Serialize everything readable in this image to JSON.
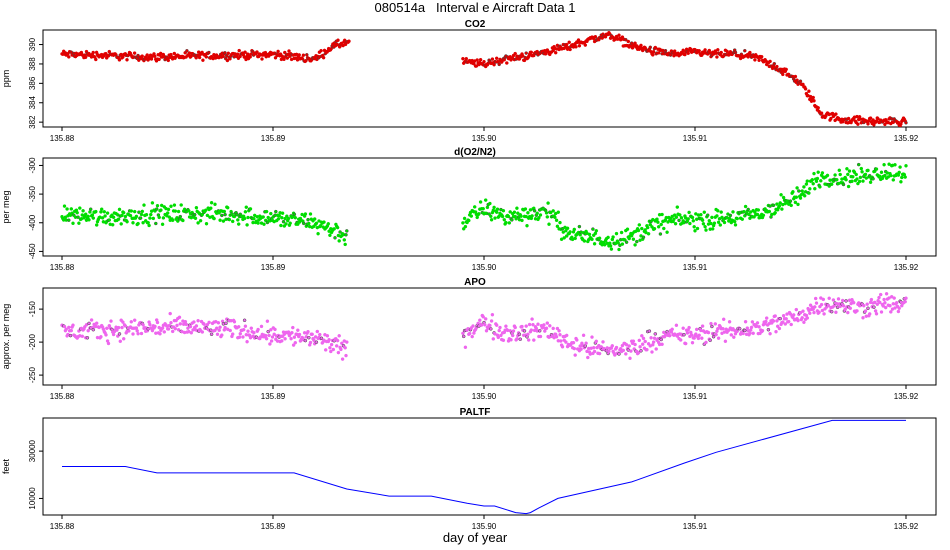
{
  "title": "080514a   Interval e Aircraft Data 1",
  "xlabel": "day of year",
  "chart_data": [
    {
      "type": "scatter",
      "title": "CO2",
      "ylabel": "ppm",
      "color": "#e00000",
      "xlim": [
        135.88,
        135.92
      ],
      "ylim": [
        381.5,
        391.5
      ],
      "xticks": [
        "135.88",
        "135.89",
        "135.90",
        "135.91",
        "135.92"
      ],
      "yticks": [
        382,
        384,
        386,
        388,
        390
      ],
      "segments": [
        {
          "x": [
            135.88,
            135.882,
            135.884,
            135.886,
            135.888,
            135.89,
            135.892,
            135.8928,
            135.8936
          ],
          "y": [
            389.0,
            388.9,
            388.7,
            388.8,
            388.9,
            389.0,
            388.5,
            389.8,
            390.3
          ]
        },
        {
          "x": [
            135.899,
            135.9,
            135.901,
            135.902,
            135.903,
            135.904,
            135.905,
            135.906,
            135.907,
            135.908,
            135.909,
            135.91,
            135.911,
            135.912,
            135.913,
            135.914,
            135.915,
            135.9155,
            135.916,
            135.917,
            135.918,
            135.919,
            135.92
          ],
          "y": [
            388.2,
            388.0,
            388.5,
            388.8,
            389.3,
            389.8,
            390.5,
            391.0,
            389.9,
            389.3,
            389.0,
            389.2,
            389.0,
            389.0,
            388.6,
            387.5,
            386.0,
            384.5,
            382.8,
            382.3,
            382.1,
            382.1,
            382.0
          ]
        }
      ],
      "noise": 0.35
    },
    {
      "type": "scatter",
      "title": "d(O2/N2)",
      "ylabel": "per meg",
      "color": "#00dd00",
      "xlim": [
        135.88,
        135.92
      ],
      "ylim": [
        -458,
        -287
      ],
      "xticks": [
        "135.88",
        "135.89",
        "135.90",
        "135.91",
        "135.92"
      ],
      "yticks": [
        -300,
        -350,
        -400,
        -450
      ],
      "segments": [
        {
          "x": [
            135.88,
            135.882,
            135.884,
            135.886,
            135.888,
            135.89,
            135.892,
            135.893,
            135.8935
          ],
          "y": [
            -385,
            -390,
            -385,
            -385,
            -385,
            -392,
            -400,
            -415,
            -425
          ]
        },
        {
          "x": [
            135.899,
            135.9,
            135.901,
            135.902,
            135.903,
            135.904,
            135.905,
            135.906,
            135.907,
            135.908,
            135.909,
            135.91,
            135.911,
            135.912,
            135.913,
            135.914,
            135.915,
            135.9155,
            135.916,
            135.917,
            135.918,
            135.919,
            135.92
          ],
          "y": [
            -400,
            -375,
            -390,
            -385,
            -380,
            -420,
            -425,
            -430,
            -425,
            -405,
            -395,
            -395,
            -395,
            -390,
            -385,
            -370,
            -355,
            -330,
            -320,
            -322,
            -318,
            -310,
            -312
          ]
        }
      ],
      "noise": 14
    },
    {
      "type": "scatter",
      "title": "APO",
      "ylabel": "approx. per meg",
      "color": "#ee66ee",
      "xlim": [
        135.88,
        135.92
      ],
      "ylim": [
        -265,
        -118
      ],
      "xticks": [
        "135.88",
        "135.89",
        "135.90",
        "135.91",
        "135.92"
      ],
      "yticks": [
        -150,
        -200,
        -250
      ],
      "segments": [
        {
          "x": [
            135.88,
            135.882,
            135.884,
            135.886,
            135.888,
            135.89,
            135.892,
            135.893,
            135.8935
          ],
          "y": [
            -185,
            -182,
            -178,
            -178,
            -180,
            -188,
            -195,
            -205,
            -215
          ]
        },
        {
          "x": [
            135.899,
            135.9,
            135.901,
            135.902,
            135.903,
            135.904,
            135.905,
            135.906,
            135.907,
            135.908,
            135.909,
            135.91,
            135.911,
            135.912,
            135.913,
            135.914,
            135.915,
            135.9155,
            135.916,
            135.917,
            135.918,
            135.919,
            135.92
          ],
          "y": [
            -190,
            -170,
            -185,
            -185,
            -180,
            -200,
            -210,
            -212,
            -210,
            -195,
            -190,
            -190,
            -185,
            -182,
            -178,
            -170,
            -160,
            -150,
            -140,
            -145,
            -148,
            -140,
            -145
          ]
        }
      ],
      "noise": 13
    },
    {
      "type": "line",
      "title": "PALTF",
      "ylabel": "feet",
      "color": "#0000ff",
      "xlim": [
        135.88,
        135.92
      ],
      "ylim": [
        3000,
        44000
      ],
      "xticks": [
        "135.88",
        "135.89",
        "135.90",
        "135.91",
        "135.92"
      ],
      "yticks": [
        10000,
        30000
      ],
      "x": [
        135.88,
        135.883,
        135.8845,
        135.887,
        135.891,
        135.8935,
        135.8955,
        135.8975,
        135.8992,
        135.9,
        135.9005,
        135.9015,
        135.902,
        135.9022,
        135.9026,
        135.9035,
        135.907,
        135.9095,
        135.911,
        135.9165,
        135.9185,
        135.92
      ],
      "y": [
        23500,
        23500,
        20800,
        20800,
        20800,
        14000,
        11000,
        11000,
        8000,
        6800,
        6800,
        4000,
        3600,
        4000,
        6000,
        10000,
        17000,
        25000,
        29500,
        43000,
        43000,
        43000
      ]
    }
  ]
}
